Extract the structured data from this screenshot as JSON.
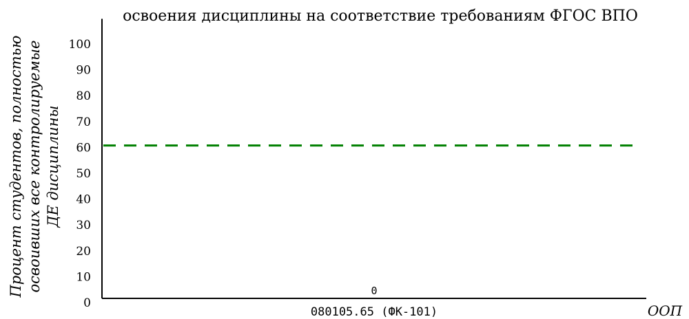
{
  "chart_data": {
    "type": "bar",
    "title": "освоения дисциплины на соответствие требованиям ФГОС ВПО",
    "ylabel_lines": [
      "Процент студентов, полностью",
      "освоивших все контролируемые",
      "ДЕ дисциплины"
    ],
    "xlabel": "ООП",
    "categories": [
      "080105.65 (ФК-101)"
    ],
    "values": [
      0
    ],
    "data_labels": [
      "0"
    ],
    "ylim": [
      0,
      110
    ],
    "yticks": [
      0,
      10,
      20,
      30,
      40,
      50,
      60,
      70,
      80,
      90,
      100
    ],
    "tick_labels": [
      "0",
      "10",
      "20",
      "30",
      "40",
      "50",
      "60",
      "70",
      "80",
      "90",
      "100"
    ],
    "threshold": {
      "value": 61,
      "style": "dashed",
      "color": "#008000"
    },
    "grid": false,
    "legend": "none",
    "colors": {
      "axis": "#000000",
      "threshold": "#008000",
      "bar": "#4f81bd"
    }
  }
}
